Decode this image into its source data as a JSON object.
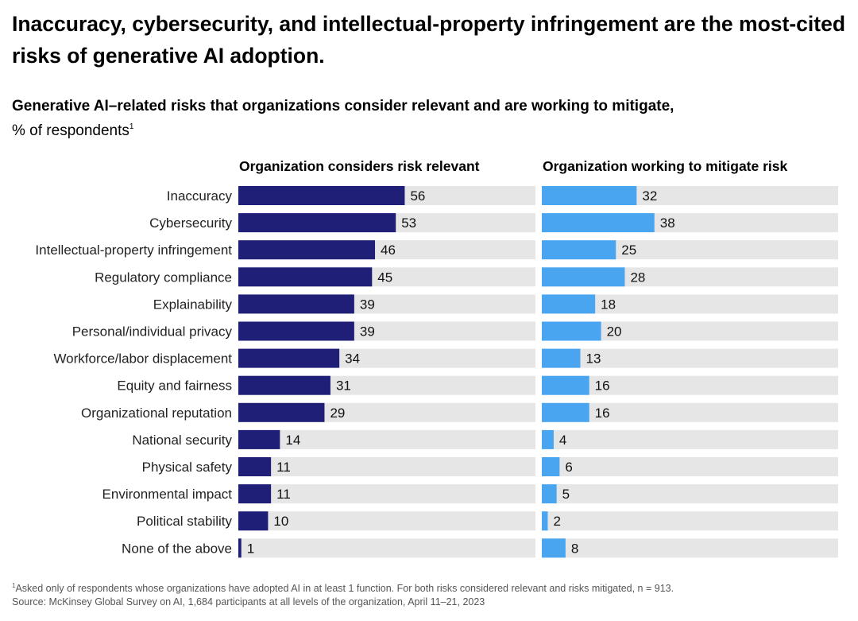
{
  "title": "Inaccuracy, cybersecurity, and intellectual-property infringement are the most-cited risks of generative AI adoption.",
  "subtitle": "Generative AI–related risks that organizations consider relevant and are working to mitigate,",
  "unit": "% of respondents",
  "unit_footnote_mark": "1",
  "footnote": {
    "mark": "1",
    "line1": "Asked only of respondents whose organizations have adopted AI in at least 1 function. For both risks considered relevant and risks mitigated, n = 913.",
    "line2": "Source: McKinsey Global Survey on AI, 1,684 participants at all levels of the organization, April 11–21, 2023"
  },
  "colors": {
    "relevant": "#1f1f78",
    "mitigate": "#4aa5f0",
    "track": "#e6e6e6"
  },
  "chart_data": {
    "type": "bar",
    "orientation": "horizontal",
    "categories": [
      "Inaccuracy",
      "Cybersecurity",
      "Intellectual-property infringement",
      "Regulatory compliance",
      "Explainability",
      "Personal/individual privacy",
      "Workforce/labor displacement",
      "Equity and fairness",
      "Organizational reputation",
      "National security",
      "Physical safety",
      "Environmental impact",
      "Political stability",
      "None of the above"
    ],
    "series": [
      {
        "name": "Organization considers risk relevant",
        "values": [
          56,
          53,
          46,
          45,
          39,
          39,
          34,
          31,
          29,
          14,
          11,
          11,
          10,
          1
        ]
      },
      {
        "name": "Organization working to mitigate risk",
        "values": [
          32,
          38,
          25,
          28,
          18,
          20,
          13,
          16,
          16,
          4,
          6,
          5,
          2,
          8
        ]
      }
    ],
    "xlim": [
      0,
      100
    ],
    "grid": false,
    "legend": "panel titles above each bar group"
  }
}
